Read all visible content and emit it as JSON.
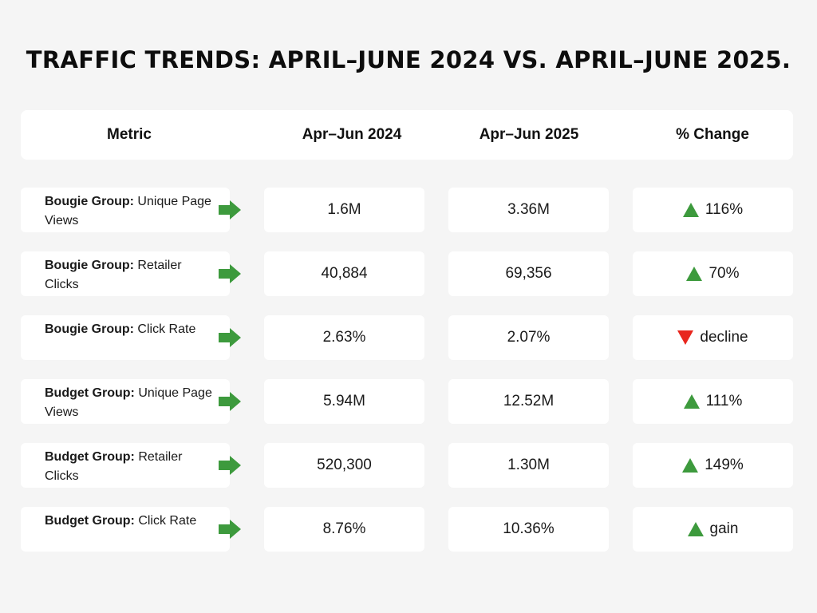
{
  "title": "TRAFFIC TRENDS: APRIL–JUNE 2024 VS. APRIL–JUNE 2025.",
  "colors": {
    "up": "#3d9a3d",
    "down": "#e8261d",
    "arrow": "#3d9a3d"
  },
  "chart_data": {
    "type": "table",
    "title": "TRAFFIC TRENDS: APRIL–JUNE 2024 VS. APRIL–JUNE 2025.",
    "columns": [
      "Metric",
      "Apr–Jun 2024",
      "Apr–Jun 2025",
      "% Change"
    ],
    "rows": [
      {
        "group": "Bougie Group:",
        "metric": "Unique Page Views",
        "v2024": "1.6M",
        "v2025": "3.36M",
        "change": "116%",
        "direction": "up"
      },
      {
        "group": "Bougie Group:",
        "metric": "Retailer Clicks",
        "v2024": "40,884",
        "v2025": "69,356",
        "change": "70%",
        "direction": "up"
      },
      {
        "group": "Bougie Group:",
        "metric": "Click Rate",
        "v2024": "2.63%",
        "v2025": "2.07%",
        "change": "decline",
        "direction": "down"
      },
      {
        "group": "Budget Group:",
        "metric": "Unique Page Views",
        "v2024": "5.94M",
        "v2025": "12.52M",
        "change": "111%",
        "direction": "up"
      },
      {
        "group": "Budget Group:",
        "metric": "Retailer Clicks",
        "v2024": "520,300",
        "v2025": "1.30M",
        "change": "149%",
        "direction": "up"
      },
      {
        "group": "Budget Group:",
        "metric": "Click Rate",
        "v2024": "8.76%",
        "v2025": "10.36%",
        "change": "gain",
        "direction": "up"
      }
    ]
  }
}
